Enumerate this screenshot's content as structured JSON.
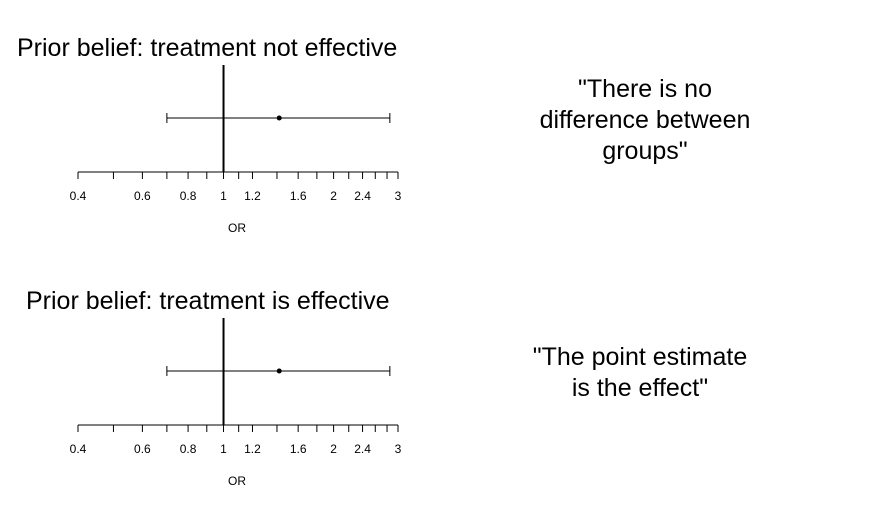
{
  "chart_data": [
    {
      "type": "forest",
      "title": "Prior belief: treatment not effective",
      "xlabel": "OR",
      "x_scale": "log",
      "xlim": [
        0.4,
        3
      ],
      "tick_labels": [
        "0.4",
        "0.6",
        "0.8",
        "1",
        "1.2",
        "1.6",
        "2",
        "2.4",
        "3"
      ],
      "minor_ticks": [
        0.4,
        0.5,
        0.6,
        0.7,
        0.8,
        0.9,
        1,
        1.1,
        1.2,
        1.4,
        1.6,
        1.8,
        2,
        2.2,
        2.4,
        2.6,
        2.8,
        3
      ],
      "reference_line": 1,
      "point_estimate": 1.42,
      "ci": [
        0.7,
        2.85
      ],
      "annotation": "\"There is no\ndifference between\n groups\""
    },
    {
      "type": "forest",
      "title": "Prior belief: treatment is effective",
      "xlabel": "OR",
      "x_scale": "log",
      "xlim": [
        0.4,
        3
      ],
      "tick_labels": [
        "0.4",
        "0.6",
        "0.8",
        "1",
        "1.2",
        "1.6",
        "2",
        "2.4",
        "3"
      ],
      "minor_ticks": [
        0.4,
        0.5,
        0.6,
        0.7,
        0.8,
        0.9,
        1,
        1.1,
        1.2,
        1.4,
        1.6,
        1.8,
        2,
        2.2,
        2.4,
        2.6,
        2.8,
        3
      ],
      "reference_line": 1,
      "point_estimate": 1.42,
      "ci": [
        0.7,
        2.85
      ],
      "annotation": "\"The point estimate\n is the effect\""
    }
  ]
}
